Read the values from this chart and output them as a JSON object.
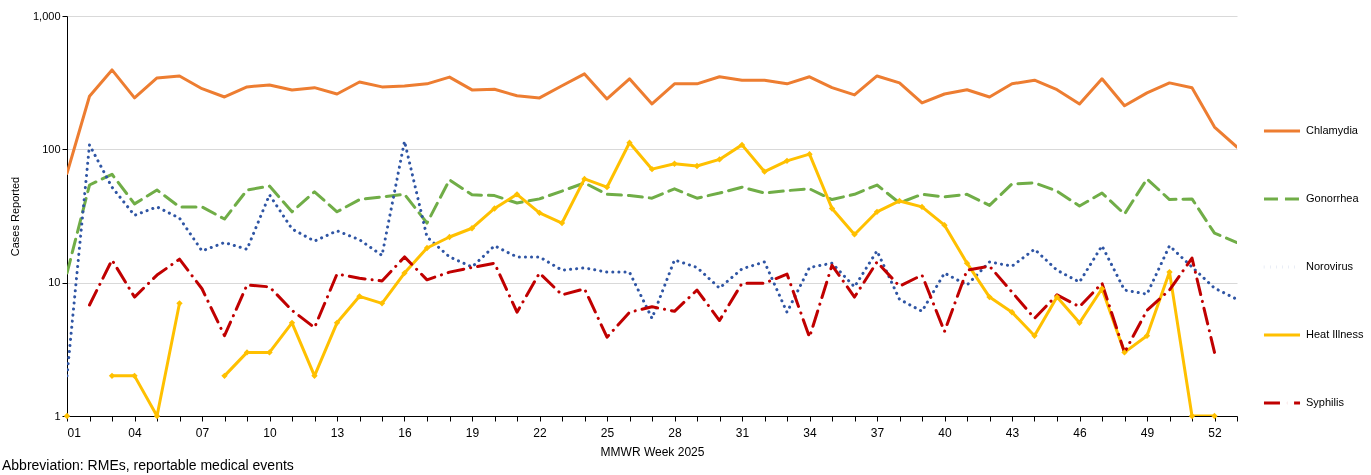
{
  "chart_data": {
    "type": "line",
    "xlabel": "MMWR Week 2025",
    "ylabel": "Cases Reported",
    "annotations": [
      "Abbreviation: RMEs, reportable medical events"
    ],
    "x": [
      1,
      2,
      3,
      4,
      5,
      6,
      7,
      8,
      9,
      10,
      11,
      12,
      13,
      14,
      15,
      16,
      17,
      18,
      19,
      20,
      21,
      22,
      23,
      24,
      25,
      26,
      27,
      28,
      29,
      30,
      31,
      32,
      33,
      34,
      35,
      36,
      37,
      38,
      39,
      40,
      41,
      42,
      43,
      44,
      45,
      46,
      47,
      48,
      49,
      50,
      51,
      52,
      53
    ],
    "xlim": [
      1,
      53
    ],
    "xticks": [
      {
        "value": 1,
        "label": "01"
      },
      {
        "value": 2,
        "label": null
      },
      {
        "value": 3,
        "label": null
      },
      {
        "value": 4,
        "label": "04"
      },
      {
        "value": 5,
        "label": null
      },
      {
        "value": 6,
        "label": null
      },
      {
        "value": 7,
        "label": "07"
      },
      {
        "value": 8,
        "label": null
      },
      {
        "value": 9,
        "label": null
      },
      {
        "value": 10,
        "label": "10"
      },
      {
        "value": 11,
        "label": null
      },
      {
        "value": 12,
        "label": null
      },
      {
        "value": 13,
        "label": "13"
      },
      {
        "value": 14,
        "label": null
      },
      {
        "value": 15,
        "label": null
      },
      {
        "value": 16,
        "label": "16"
      },
      {
        "value": 17,
        "label": null
      },
      {
        "value": 18,
        "label": null
      },
      {
        "value": 19,
        "label": "19"
      },
      {
        "value": 20,
        "label": null
      },
      {
        "value": 21,
        "label": null
      },
      {
        "value": 22,
        "label": "22"
      },
      {
        "value": 23,
        "label": null
      },
      {
        "value": 24,
        "label": null
      },
      {
        "value": 25,
        "label": "25"
      },
      {
        "value": 26,
        "label": null
      },
      {
        "value": 27,
        "label": null
      },
      {
        "value": 28,
        "label": "28"
      },
      {
        "value": 29,
        "label": null
      },
      {
        "value": 30,
        "label": null
      },
      {
        "value": 31,
        "label": "31"
      },
      {
        "value": 32,
        "label": null
      },
      {
        "value": 33,
        "label": null
      },
      {
        "value": 34,
        "label": "34"
      },
      {
        "value": 35,
        "label": null
      },
      {
        "value": 36,
        "label": null
      },
      {
        "value": 37,
        "label": "37"
      },
      {
        "value": 38,
        "label": null
      },
      {
        "value": 39,
        "label": null
      },
      {
        "value": 40,
        "label": "40"
      },
      {
        "value": 41,
        "label": null
      },
      {
        "value": 42,
        "label": null
      },
      {
        "value": 43,
        "label": "43"
      },
      {
        "value": 44,
        "label": null
      },
      {
        "value": 45,
        "label": null
      },
      {
        "value": 46,
        "label": "46"
      },
      {
        "value": 47,
        "label": null
      },
      {
        "value": 48,
        "label": null
      },
      {
        "value": 49,
        "label": "49"
      },
      {
        "value": 50,
        "label": null
      },
      {
        "value": 51,
        "label": null
      },
      {
        "value": 52,
        "label": "52"
      },
      {
        "value": 53,
        "label": null
      }
    ],
    "ylim": [
      1,
      1000
    ],
    "yticks": [
      1,
      10,
      100,
      {
        "value": 1000,
        "label": "1,000"
      }
    ],
    "log": "y",
    "grid": "y",
    "legend": "right",
    "series": [
      {
        "name": "Chlamydia",
        "color": "#ed7d31",
        "line_style": "solid",
        "values": [
          66,
          250,
          394,
          243,
          343,
          355,
          285,
          247,
          294,
          304,
          279,
          290,
          260,
          320,
          294,
          298,
          310,
          348,
          279,
          282,
          252,
          243,
          300,
          368,
          239,
          338,
          219,
          310,
          310,
          350,
          330,
          330,
          310,
          350,
          290,
          256,
          355,
          315,
          223,
          260,
          280,
          247,
          310,
          330,
          280,
          219,
          338,
          212,
          265,
          315,
          290,
          147,
          104
        ]
      },
      {
        "name": "Gonorrhea",
        "color": "#70ad47",
        "line_style": "dashed",
        "values": [
          11.8,
          54,
          65,
          39,
          49.5,
          37,
          37,
          30,
          49.5,
          53,
          34,
          48,
          34,
          42,
          44,
          46,
          28,
          59,
          45.6,
          45,
          39.6,
          42.5,
          48.6,
          56,
          46,
          45,
          43,
          50.6,
          43,
          47,
          52,
          47,
          49,
          50.6,
          42,
          46,
          54,
          39.6,
          46,
          44,
          46,
          38,
          55,
          56,
          48.6,
          37.6,
          47,
          32.7,
          60,
          42,
          42.5,
          23.5,
          20
        ]
      },
      {
        "name": "Norovirus",
        "color": "#2f55a4",
        "line_style": "dotted",
        "values": [
          2,
          108,
          52,
          32,
          37,
          30.5,
          17.3,
          20,
          17.8,
          45.6,
          25.3,
          20.5,
          24.5,
          21,
          16,
          115,
          22,
          15.6,
          13.1,
          18.9,
          15.6,
          15.6,
          12.4,
          12.9,
          12,
          12,
          5.4,
          14.8,
          13,
          9.1,
          12.7,
          14.3,
          6,
          13,
          14,
          9.3,
          17.3,
          7.5,
          6.1,
          11.8,
          9.6,
          14.3,
          13.3,
          17.8,
          12.4,
          10.1,
          18.9,
          8.8,
          8.2,
          18.9,
          13.1,
          9.1,
          7.5
        ]
      },
      {
        "name": "Heat Illness",
        "color": "#ffc000",
        "line_style": "solid",
        "marker": "diamond",
        "values": [
          1,
          null,
          2,
          2,
          1,
          7,
          null,
          2,
          3,
          3,
          5,
          2,
          5,
          7.9,
          7,
          11.8,
          18.2,
          22,
          25.6,
          36,
          46,
          33.4,
          28,
          60,
          52,
          112,
          71,
          78,
          75,
          84,
          108,
          68,
          82,
          92,
          36,
          23,
          34,
          41,
          37,
          27,
          14,
          7.8,
          6,
          4,
          7.8,
          5,
          9,
          3,
          4,
          12,
          1,
          1,
          null
        ]
      },
      {
        "name": "Syphilis",
        "color": "#c00000",
        "line_style": "dashdot",
        "values": [
          null,
          6.8,
          14.8,
          7.8,
          11.4,
          15,
          9,
          4,
          9.6,
          9.3,
          6.2,
          4.6,
          11.6,
          10.8,
          10.3,
          15.6,
          10.5,
          12,
          13,
          14,
          6,
          11.8,
          8.1,
          9,
          3.9,
          6,
          6.6,
          6.1,
          8.8,
          5.2,
          9.9,
          9.9,
          11.6,
          3.9,
          13.5,
          7.8,
          14.3,
          9.4,
          11.4,
          4.3,
          12.4,
          13.3,
          8.5,
          5.4,
          8.1,
          6.6,
          9.9,
          3,
          6.2,
          8.8,
          15.3,
          3,
          null
        ]
      }
    ]
  }
}
